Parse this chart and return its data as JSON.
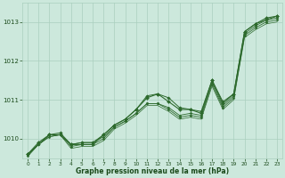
{
  "xlabel": "Graphe pression niveau de la mer (hPa)",
  "x_hours": [
    0,
    1,
    2,
    3,
    4,
    5,
    6,
    7,
    8,
    9,
    10,
    11,
    12,
    13,
    14,
    15,
    16,
    17,
    18,
    19,
    20,
    21,
    22,
    23
  ],
  "series": [
    {
      "y": [
        1009.6,
        1009.9,
        1010.1,
        1010.1,
        1009.85,
        1009.85,
        1009.85,
        1010.1,
        1010.35,
        1010.5,
        1010.75,
        1011.05,
        1011.15,
        1010.95,
        1010.75,
        1010.75,
        1010.65,
        1011.5,
        1010.9,
        1011.15,
        1012.75,
        1012.95,
        1013.1,
        1013.15
      ],
      "linewidth": 0.8,
      "marker": "D",
      "markersize": 2.0
    },
    {
      "y": [
        1009.6,
        1009.85,
        1010.1,
        1010.15,
        1009.85,
        1009.9,
        1009.9,
        1010.1,
        1010.35,
        1010.5,
        1010.75,
        1011.1,
        1011.15,
        1011.05,
        1010.8,
        1010.75,
        1010.7,
        1011.5,
        1010.95,
        1011.15,
        1012.75,
        1012.95,
        1013.05,
        1013.15
      ],
      "linewidth": 0.7,
      "marker": "D",
      "markersize": 1.8
    },
    {
      "y": [
        1009.6,
        1009.85,
        1010.1,
        1010.1,
        1009.85,
        1009.9,
        1009.9,
        1010.05,
        1010.3,
        1010.45,
        1010.65,
        1010.9,
        1010.9,
        1010.8,
        1010.6,
        1010.65,
        1010.6,
        1011.45,
        1010.85,
        1011.1,
        1012.7,
        1012.9,
        1013.05,
        1013.1
      ],
      "linewidth": 0.6,
      "marker": "D",
      "markersize": 1.5
    },
    {
      "y": [
        1009.55,
        1009.85,
        1010.05,
        1010.1,
        1009.8,
        1009.85,
        1009.85,
        1010.0,
        1010.3,
        1010.45,
        1010.65,
        1010.9,
        1010.9,
        1010.75,
        1010.55,
        1010.6,
        1010.55,
        1011.4,
        1010.8,
        1011.05,
        1012.65,
        1012.85,
        1013.0,
        1013.05
      ],
      "linewidth": 0.6,
      "marker": "D",
      "markersize": 1.5
    },
    {
      "y": [
        1009.55,
        1009.85,
        1010.05,
        1010.1,
        1009.75,
        1009.8,
        1009.8,
        1009.95,
        1010.25,
        1010.4,
        1010.6,
        1010.85,
        1010.85,
        1010.7,
        1010.5,
        1010.55,
        1010.5,
        1011.35,
        1010.75,
        1011.0,
        1012.6,
        1012.8,
        1012.95,
        1013.0
      ],
      "linewidth": 0.5,
      "marker": null,
      "markersize": 0
    }
  ],
  "line_color": "#2d6a2d",
  "marker_color": "#2d6a2d",
  "bg_color": "#cce8dc",
  "grid_color": "#aacfbe",
  "axis_label_color": "#1a4a1a",
  "ylim": [
    1009.5,
    1013.5
  ],
  "yticks": [
    1010,
    1011,
    1012,
    1013
  ],
  "xlim": [
    -0.5,
    23.5
  ],
  "figsize": [
    3.2,
    2.0
  ],
  "dpi": 100
}
